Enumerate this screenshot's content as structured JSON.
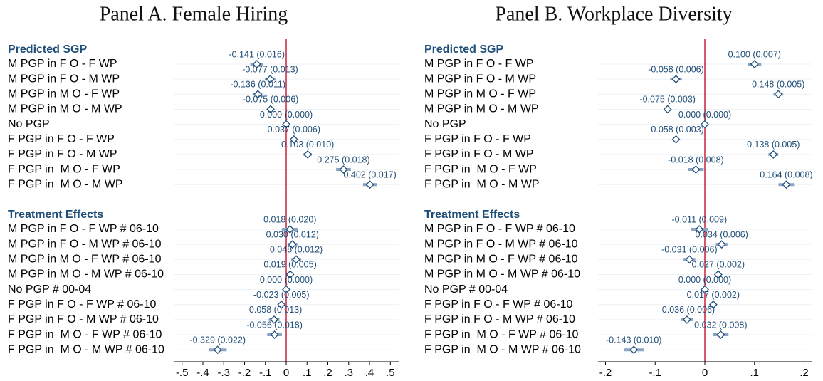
{
  "chart_data": [
    {
      "type": "coefplot",
      "title": "Panel A. Female Hiring",
      "groups": [
        {
          "name": "Predicted SGP",
          "categories": [
            "M PGP in F O - F WP",
            "M PGP in F O - M WP",
            "M PGP in M O - F WP",
            "M PGP in M O - M WP",
            "No PGP",
            "F PGP in F O - F WP",
            "F PGP in F O - M WP",
            "F PGP in  M O - F WP",
            "F PGP in  M O - M WP"
          ],
          "values": [
            -0.141,
            -0.077,
            -0.136,
            -0.075,
            0.0,
            0.037,
            0.103,
            0.275,
            0.402
          ],
          "errors": [
            0.016,
            0.013,
            0.011,
            0.006,
            0.0,
            0.006,
            0.01,
            0.018,
            0.017
          ],
          "value_labels": [
            "-0.141 (0.016)",
            "-0.077 (0.013)",
            "-0.136 (0.011)",
            "-0.075 (0.006)",
            "0.000 (0.000)",
            "0.037 (0.006)",
            "0.103 (0.010)",
            "0.275 (0.018)",
            "0.402 (0.017)"
          ]
        },
        {
          "name": "Treatment Effects",
          "categories": [
            "M PGP in F O - F WP # 06-10",
            "M PGP in F O - M WP # 06-10",
            "M PGP in M O - F WP # 06-10",
            "M PGP in M O - M WP # 06-10",
            "No PGP # 00-04",
            "F PGP in F O - F WP # 06-10",
            "F PGP in F O - M WP # 06-10",
            "F PGP in  M O - F WP # 06-10",
            "F PGP in  M O - M WP # 06-10"
          ],
          "values": [
            0.018,
            0.03,
            0.048,
            0.019,
            0.0,
            -0.023,
            -0.058,
            -0.056,
            -0.329
          ],
          "errors": [
            0.02,
            0.012,
            0.012,
            0.005,
            0.0,
            0.005,
            0.013,
            0.018,
            0.022
          ],
          "value_labels": [
            "0.018 (0.020)",
            "0.030 (0.012)",
            "0.048 (0.012)",
            "0.019 (0.005)",
            "0.000 (0.000)",
            "-0.023 (0.005)",
            "-0.058 (0.013)",
            "-0.056 (0.018)",
            "-0.329 (0.022)"
          ]
        }
      ],
      "xlim": [
        -0.54,
        0.54
      ],
      "xticks": [
        {
          "value": -0.5,
          "label": "-.5"
        },
        {
          "value": -0.4,
          "label": "-.4"
        },
        {
          "value": -0.3,
          "label": "-.3"
        },
        {
          "value": -0.2,
          "label": "-.2"
        },
        {
          "value": -0.1,
          "label": "-.1"
        },
        0,
        {
          "value": 0.1,
          "label": ".1"
        },
        {
          "value": 0.2,
          "label": ".2"
        },
        {
          "value": 0.3,
          "label": ".3"
        },
        {
          "value": 0.4,
          "label": ".4"
        },
        {
          "value": 0.5,
          "label": ".5"
        }
      ],
      "xline": 0,
      "grid": true,
      "color": "#1f4e79",
      "ci_color": "#8aa4bf",
      "xline_color": "#c00020"
    },
    {
      "type": "coefplot",
      "title": "Panel B. Workplace Diversity",
      "groups": [
        {
          "name": "Predicted SGP",
          "categories": [
            "M PGP in F O - F WP",
            "M PGP in F O - M WP",
            "M PGP in M O - F WP",
            "M PGP in M O - M WP",
            "No PGP",
            "F PGP in F O - F WP",
            "F PGP in F O - M WP",
            "F PGP in  M O - F WP",
            "F PGP in  M O - M WP"
          ],
          "values": [
            0.1,
            -0.058,
            0.148,
            -0.075,
            0.0,
            -0.058,
            0.138,
            -0.018,
            0.164
          ],
          "errors": [
            0.007,
            0.006,
            0.005,
            0.003,
            0.0,
            0.003,
            0.005,
            0.008,
            0.008
          ],
          "value_labels": [
            "0.100 (0.007)",
            "-0.058 (0.006)",
            "0.148 (0.005)",
            "-0.075 (0.003)",
            "0.000 (0.000)",
            "-0.058 (0.003)",
            "0.138 (0.005)",
            "-0.018 (0.008)",
            "0.164 (0.008)"
          ]
        },
        {
          "name": "Treatment Effects",
          "categories": [
            "M PGP in F O - F WP # 06-10",
            "M PGP in F O - M WP # 06-10",
            "M PGP in M O - F WP # 06-10",
            "M PGP in M O - M WP # 06-10",
            "No PGP # 00-04",
            "F PGP in F O - F WP # 06-10",
            "F PGP in F O - M WP # 06-10",
            "F PGP in  M O - F WP # 06-10",
            "F PGP in  M O - M WP # 06-10"
          ],
          "values": [
            -0.011,
            0.034,
            -0.031,
            0.027,
            0.0,
            0.017,
            -0.036,
            0.032,
            -0.143
          ],
          "errors": [
            0.009,
            0.006,
            0.006,
            0.002,
            0.0,
            0.002,
            0.006,
            0.008,
            0.01
          ],
          "value_labels": [
            "-0.011 (0.009)",
            "0.034 (0.006)",
            "-0.031 (0.006)",
            "0.027 (0.002)",
            "0.000 (0.000)",
            "0.017 (0.002)",
            "-0.036 (0.006)",
            "0.032 (0.008)",
            "-0.143 (0.010)"
          ]
        }
      ],
      "xlim": [
        -0.215,
        0.215
      ],
      "xticks": [
        {
          "value": -0.2,
          "label": "-.2"
        },
        {
          "value": -0.1,
          "label": "-.1"
        },
        0,
        {
          "value": 0.1,
          "label": ".1"
        },
        {
          "value": 0.2,
          "label": ".2"
        }
      ],
      "xline": 0,
      "grid": true,
      "color": "#1f4e79",
      "ci_color": "#8aa4bf",
      "xline_color": "#c00020"
    }
  ]
}
